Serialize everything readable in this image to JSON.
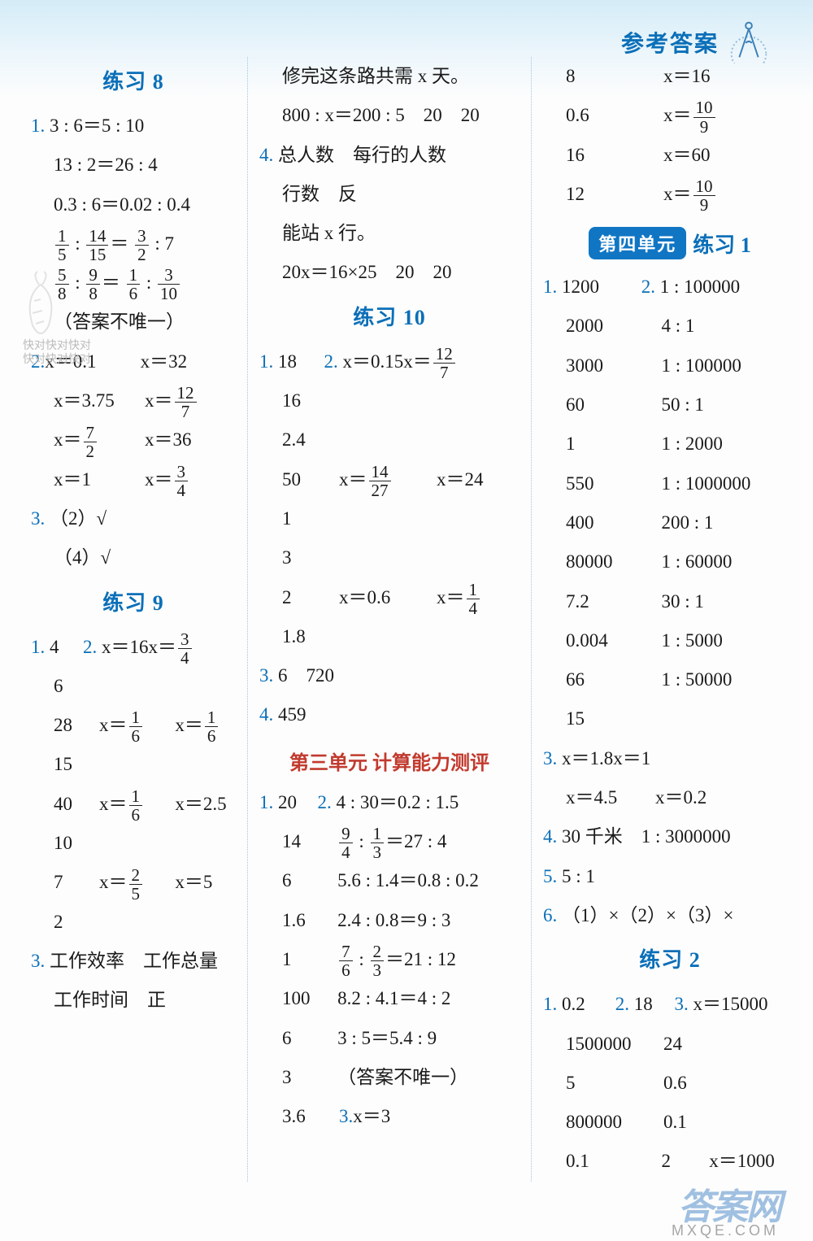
{
  "header": {
    "title": "参考答案"
  },
  "col1": {
    "title8": "练习 8",
    "p8_q1": [
      "3 : 6＝5 : 10",
      "13 : 2＝26 : 4",
      "0.3 : 6＝0.02 : 0.4"
    ],
    "p8_q1_frac1": {
      "a": "1",
      "b": "5",
      "c": "14",
      "d": "15",
      "e": "3",
      "f": "2",
      "g": "7"
    },
    "p8_q1_frac2": {
      "a": "5",
      "b": "8",
      "c": "9",
      "d": "8",
      "e": "1",
      "f": "6",
      "g": "3",
      "h": "10"
    },
    "p8_note": "（答案不唯一）",
    "p8_q2": [
      [
        "x＝0.1",
        "x＝32"
      ],
      [
        "x＝3.75",
        "x＝__F12_7"
      ],
      [
        "x＝__F7_2",
        "x＝36"
      ],
      [
        "x＝1",
        "x＝__F3_4"
      ]
    ],
    "p8_q3a": "（2）√",
    "p8_q3b": "（4）√",
    "title9": "练习 9",
    "p9_q1": "4",
    "p9_q2": [
      [
        "x＝16",
        "x＝__F3_4"
      ],
      [
        "6",
        ""
      ],
      [
        "28",
        "x＝__F1_6",
        "x＝__F1_6"
      ],
      [
        "15",
        ""
      ],
      [
        "40",
        "x＝__F1_6",
        "x＝2.5"
      ],
      [
        "10",
        ""
      ],
      [
        "7",
        "x＝__F2_5",
        "x＝5"
      ],
      [
        "2",
        ""
      ]
    ],
    "p9_q3a": "工作效率　工作总量",
    "p9_q3b": "工作时间　正"
  },
  "col2": {
    "linesA": [
      "修完这条路共需 x 天。",
      "800 : x＝200 : 5　20　20"
    ],
    "q4a": "总人数　每行的人数",
    "q4b": "行数　反",
    "q4c": "能站 x 行。",
    "q4d": "20x＝16×25　20　20",
    "title10": "练习 10",
    "p10_q1": "18",
    "p10_q2": [
      [
        "x＝0.15",
        "x＝__F12_7"
      ],
      [
        "16",
        ""
      ],
      [
        "2.4",
        ""
      ],
      [
        "50",
        "x＝__F14_27",
        "x＝24"
      ],
      [
        "1",
        ""
      ],
      [
        "3",
        ""
      ],
      [
        "2",
        "x＝0.6",
        "x＝__F1_4"
      ],
      [
        "1.8",
        ""
      ]
    ],
    "p10_q3": "6　720",
    "p10_q4": "459",
    "titleU3": "第三单元 计算能力测评",
    "u3_q1": "20",
    "u3_q2": [
      [
        "",
        "4 : 30＝0.2 : 1.5"
      ],
      [
        "14",
        "__F9_4 : __F1_3＝27 : 4"
      ],
      [
        "6",
        "5.6 : 1.4＝0.8 : 0.2"
      ],
      [
        "1.6",
        "2.4 : 0.8＝9 : 3"
      ],
      [
        "1",
        "__F7_6 : __F2_3＝21 : 12"
      ],
      [
        "100",
        "8.2 : 4.1＝4 : 2"
      ],
      [
        "6",
        "3 : 5＝5.4 : 9"
      ],
      [
        "3",
        "（答案不唯一）"
      ]
    ],
    "u3_q3_row": [
      "3.6",
      "x＝3"
    ]
  },
  "col3": {
    "topRows": [
      [
        "8",
        "x＝16"
      ],
      [
        "0.6",
        "x＝__F10_9"
      ],
      [
        "16",
        "x＝60"
      ],
      [
        "12",
        "x＝__F10_9"
      ]
    ],
    "unit4": "第四单元",
    "unit4_ex": "练习 1",
    "u4_q1_first": "1200",
    "u4_q2_first": "1 : 100000",
    "u4_rows": [
      [
        "2000",
        "4 : 1"
      ],
      [
        "3000",
        "1 : 100000"
      ],
      [
        "60",
        "50 : 1"
      ],
      [
        "1",
        "1 : 2000"
      ],
      [
        "550",
        "1 : 1000000"
      ],
      [
        "400",
        "200 : 1"
      ],
      [
        "80000",
        "1 : 60000"
      ],
      [
        "7.2",
        "30 : 1"
      ],
      [
        "0.004",
        "1 : 5000"
      ],
      [
        "66",
        "1 : 50000"
      ],
      [
        "15",
        ""
      ]
    ],
    "u4_q3": [
      [
        "x＝1.8",
        "x＝1"
      ],
      [
        "x＝4.5",
        "x＝0.2"
      ]
    ],
    "u4_q4": "30 千米　1 : 3000000",
    "u4_q5": "5 : 1",
    "u4_q6": "（1）×（2）×（3）×",
    "title_ex2": "练习 2",
    "ex2_q1": "0.2",
    "ex2_q2": "18",
    "ex2_q3": "x＝15000",
    "ex2_rows": [
      [
        "1500000",
        "24"
      ],
      [
        "5",
        "0.6"
      ],
      [
        "800000",
        "0.1"
      ],
      [
        "0.1",
        "2",
        "x＝1000"
      ]
    ]
  },
  "footer": {
    "brand": "答案网",
    "url": "MXQE.COM"
  },
  "watermark": "快对快对快对\n快对快对快对"
}
